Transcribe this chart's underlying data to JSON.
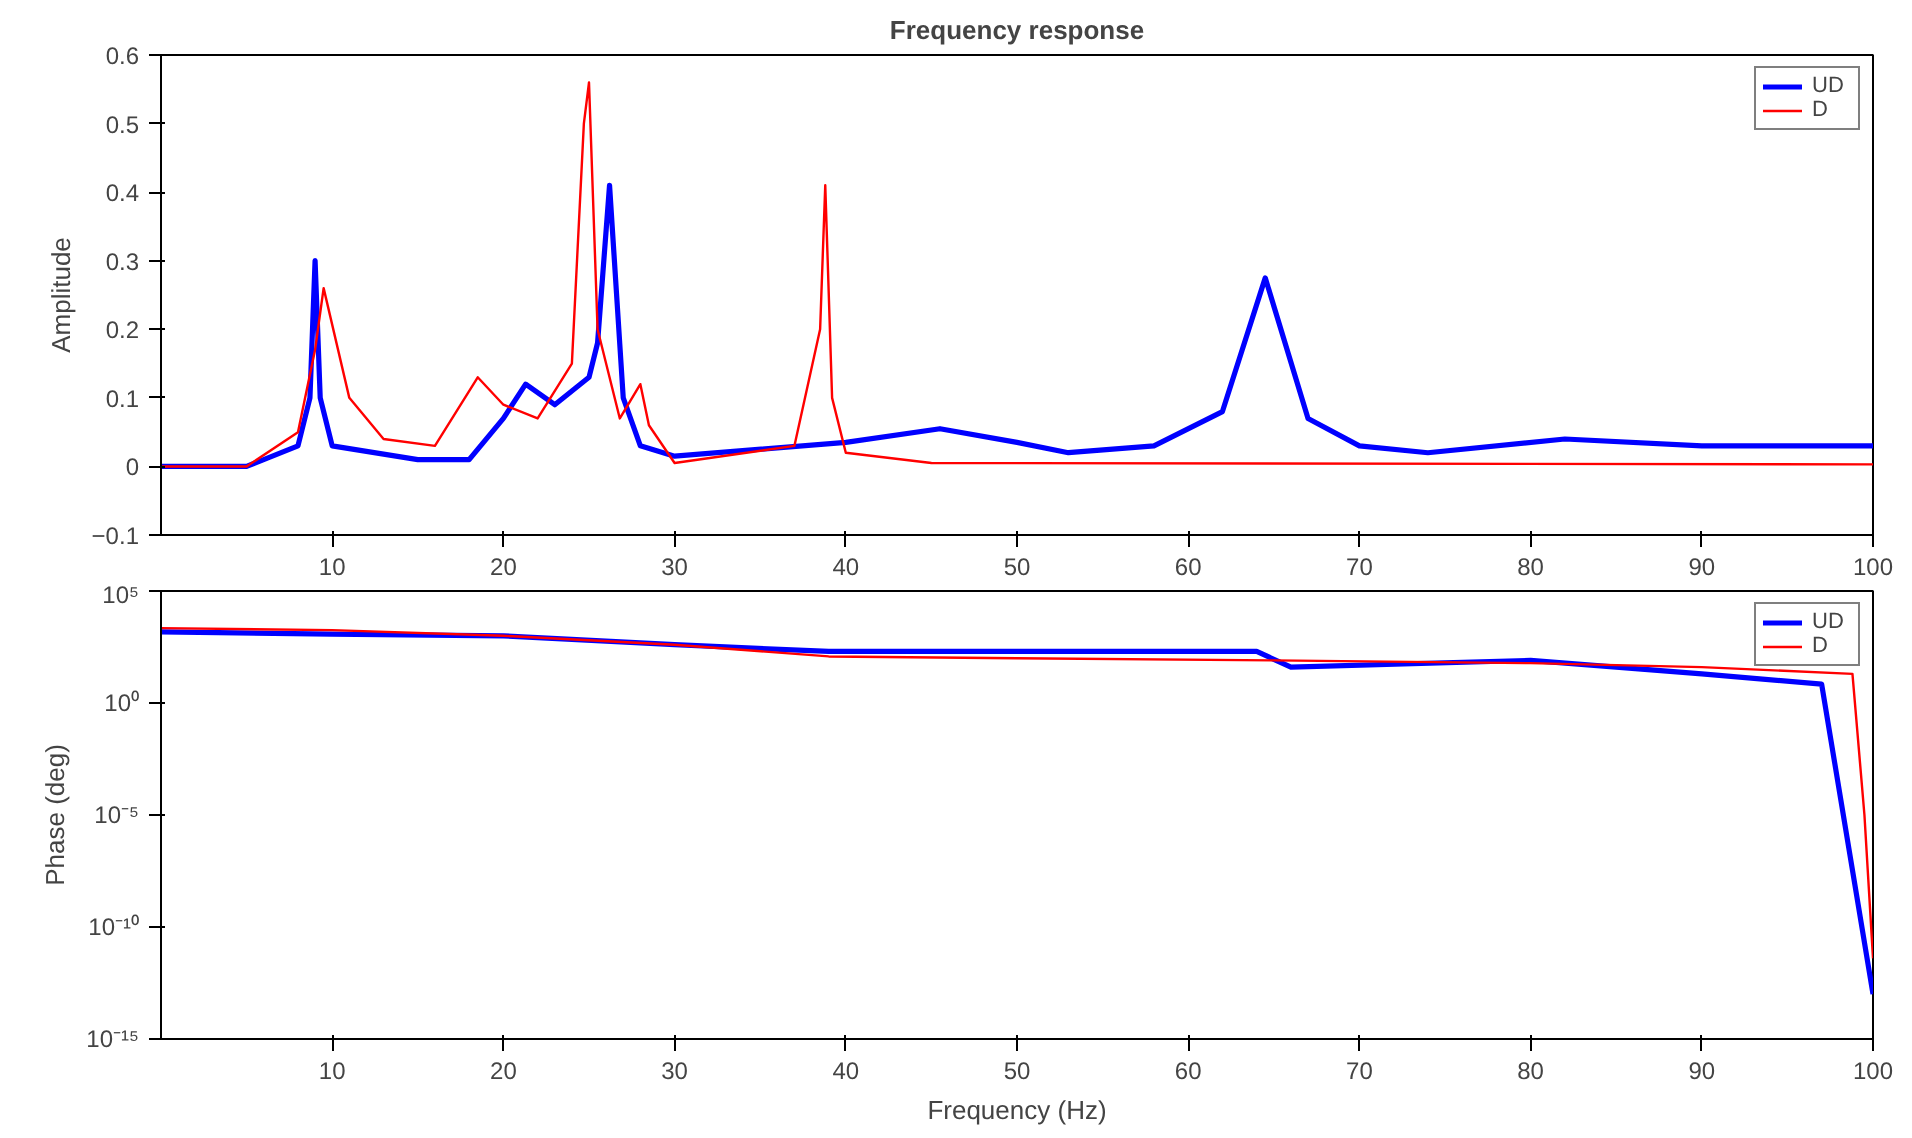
{
  "chart_data": [
    {
      "type": "line",
      "title": "Frequency response",
      "ylabel": "Amplitude",
      "xlim": [
        0,
        100
      ],
      "xticks": [
        10,
        20,
        30,
        40,
        50,
        60,
        70,
        80,
        90,
        100
      ],
      "ylim": [
        -0.1,
        0.6
      ],
      "yticks": [
        -0.1,
        0,
        0.1,
        0.2,
        0.3,
        0.4,
        0.5,
        0.6
      ],
      "legend": "top right",
      "grid": false,
      "series": [
        {
          "name": "UD",
          "color": "#0000ff",
          "x": [
            0,
            5,
            8,
            8.7,
            9.0,
            9.3,
            10,
            15,
            18,
            20,
            21.3,
            23,
            25,
            25.5,
            26.2,
            27,
            28,
            30,
            40,
            45.5,
            50,
            53,
            58,
            62,
            64.5,
            67,
            70,
            74,
            82,
            90,
            100
          ],
          "values": [
            0,
            0,
            0.03,
            0.1,
            0.3,
            0.1,
            0.03,
            0.01,
            0.01,
            0.07,
            0.12,
            0.09,
            0.13,
            0.18,
            0.41,
            0.1,
            0.03,
            0.015,
            0.035,
            0.055,
            0.035,
            0.02,
            0.03,
            0.08,
            0.275,
            0.07,
            0.03,
            0.02,
            0.04,
            0.03,
            0.03
          ]
        },
        {
          "name": "D",
          "color": "#ff0000",
          "x": [
            0,
            5,
            8,
            9,
            9.5,
            11,
            13,
            16,
            18.5,
            20,
            22,
            24,
            24.7,
            25,
            25.5,
            26.8,
            28,
            28.5,
            30,
            37,
            38.5,
            38.8,
            39.2,
            40,
            45,
            100
          ],
          "values": [
            0,
            0,
            0.05,
            0.17,
            0.26,
            0.1,
            0.04,
            0.03,
            0.13,
            0.09,
            0.07,
            0.15,
            0.5,
            0.56,
            0.2,
            0.07,
            0.12,
            0.06,
            0.005,
            0.03,
            0.2,
            0.41,
            0.1,
            0.02,
            0.005,
            0.003
          ]
        }
      ]
    },
    {
      "type": "line",
      "xlabel": "Frequency (Hz)",
      "ylabel": "Phase (deg)",
      "log": "y",
      "xlim": [
        0,
        100
      ],
      "xticks": [
        10,
        20,
        30,
        40,
        50,
        60,
        70,
        80,
        90,
        100
      ],
      "ylim": [
        1e-15,
        100000.0
      ],
      "yticks": [
        {
          "value": 1e-15,
          "label": "10⁻¹⁵"
        },
        {
          "value": 1e-10,
          "label": "10⁻¹⁰"
        },
        {
          "value": 1e-05,
          "label": "10⁻⁵"
        },
        {
          "value": 1,
          "label": "10⁰"
        },
        {
          "value": 100000.0,
          "label": "10⁵"
        }
      ],
      "legend": "top right",
      "grid": false,
      "series": [
        {
          "name": "UD",
          "color": "#0000ff",
          "x": [
            0,
            10,
            20,
            30,
            39,
            50,
            64,
            66,
            80,
            90,
            97,
            100
          ],
          "values": [
            1500,
            1200,
            1000,
            400,
            200,
            200,
            200,
            40,
            80,
            20,
            7,
            1e-13
          ]
        },
        {
          "name": "D",
          "color": "#ff0000",
          "x": [
            0,
            10,
            20,
            30,
            39,
            50,
            65,
            80,
            90,
            98.8,
            99.5,
            100
          ],
          "values": [
            2200,
            1800,
            1000,
            400,
            120,
            100,
            80,
            60,
            40,
            20,
            1e-05,
            4e-12
          ]
        }
      ]
    }
  ]
}
